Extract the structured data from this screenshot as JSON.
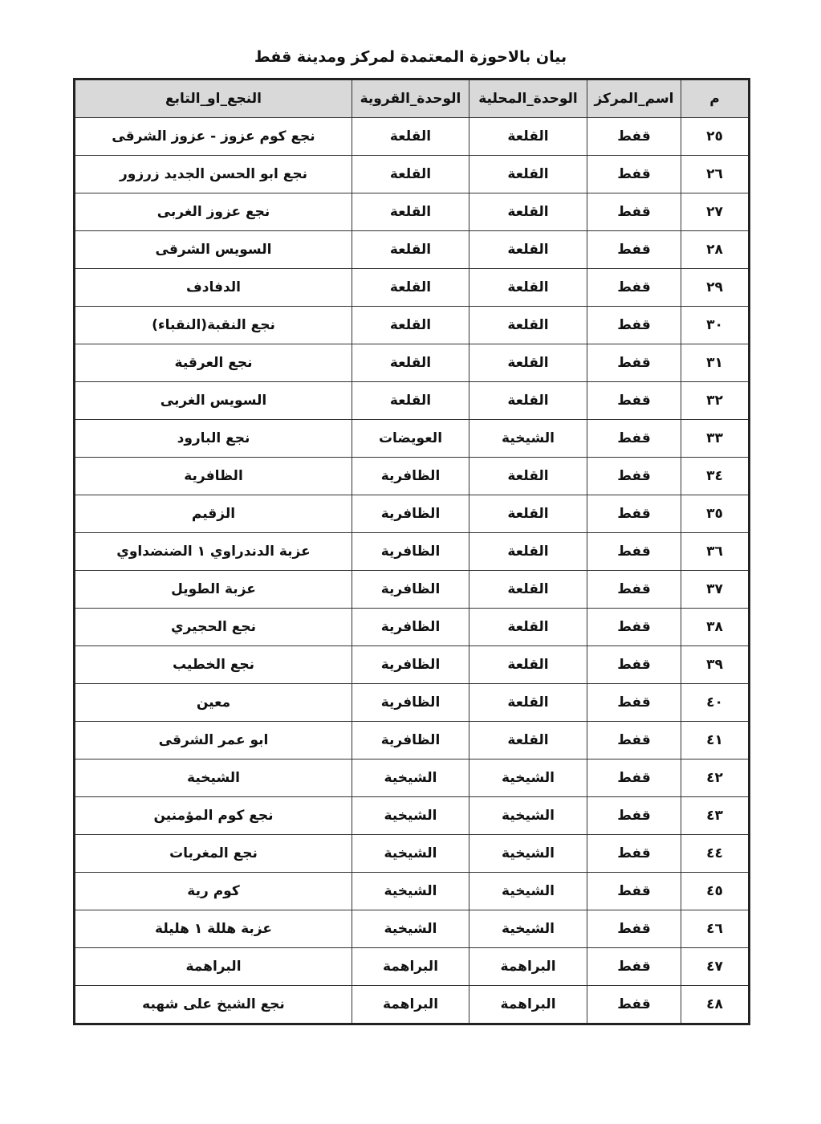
{
  "title": "بيان بالاحوزة المعتمدة لمركز ومدينة قفط",
  "columns": [
    "م",
    "اسم_المركز",
    "الوحدة_المحلية",
    "الوحدة_القروية",
    "النجع_او_التابع"
  ],
  "rows": [
    [
      "٢٥",
      "قفط",
      "القلعة",
      "القلعة",
      "نجع كوم عزوز - عزوز الشرقى"
    ],
    [
      "٢٦",
      "قفط",
      "القلعة",
      "القلعة",
      "نجع ابو الحسن الجديد زرزور"
    ],
    [
      "٢٧",
      "قفط",
      "القلعة",
      "القلعة",
      "نجع عزوز الغربى"
    ],
    [
      "٢٨",
      "قفط",
      "القلعة",
      "القلعة",
      "السويس الشرقى"
    ],
    [
      "٢٩",
      "قفط",
      "القلعة",
      "القلعة",
      "الدفادف"
    ],
    [
      "٣٠",
      "قفط",
      "القلعة",
      "القلعة",
      "نجع النقبة(النقباء)"
    ],
    [
      "٣١",
      "قفط",
      "القلعة",
      "القلعة",
      "نجع العرقية"
    ],
    [
      "٣٢",
      "قفط",
      "القلعة",
      "القلعة",
      "السويس الغربى"
    ],
    [
      "٣٣",
      "قفط",
      "الشيخية",
      "العويضات",
      "نجع البارود"
    ],
    [
      "٣٤",
      "قفط",
      "القلعة",
      "الظافرية",
      "الظافرية"
    ],
    [
      "٣٥",
      "قفط",
      "القلعة",
      "الظافرية",
      "الزقيم"
    ],
    [
      "٣٦",
      "قفط",
      "القلعة",
      "الظافرية",
      "عزبة الدندراوي ١ الضنضداوي"
    ],
    [
      "٣٧",
      "قفط",
      "القلعة",
      "الظافرية",
      "عزبة الطويل"
    ],
    [
      "٣٨",
      "قفط",
      "القلعة",
      "الظافرية",
      "نجع الحجيري"
    ],
    [
      "٣٩",
      "قفط",
      "القلعة",
      "الظافرية",
      "نجع الخطيب"
    ],
    [
      "٤٠",
      "قفط",
      "القلعة",
      "الظافرية",
      "معين"
    ],
    [
      "٤١",
      "قفط",
      "القلعة",
      "الظافرية",
      "ابو عمر الشرقى"
    ],
    [
      "٤٢",
      "قفط",
      "الشيخية",
      "الشيخية",
      "الشيخية"
    ],
    [
      "٤٣",
      "قفط",
      "الشيخية",
      "الشيخية",
      "نجع كوم المؤمنين"
    ],
    [
      "٤٤",
      "قفط",
      "الشيخية",
      "الشيخية",
      "نجع المغربات"
    ],
    [
      "٤٥",
      "قفط",
      "الشيخية",
      "الشيخية",
      "كوم رية"
    ],
    [
      "٤٦",
      "قفط",
      "الشيخية",
      "الشيخية",
      "عزبة هللة ١ هليلة"
    ],
    [
      "٤٧",
      "قفط",
      "البراهمة",
      "البراهمة",
      "البراهمة"
    ],
    [
      "٤٨",
      "قفط",
      "البراهمة",
      "البراهمة",
      "نجع الشيخ على شهبه"
    ]
  ]
}
